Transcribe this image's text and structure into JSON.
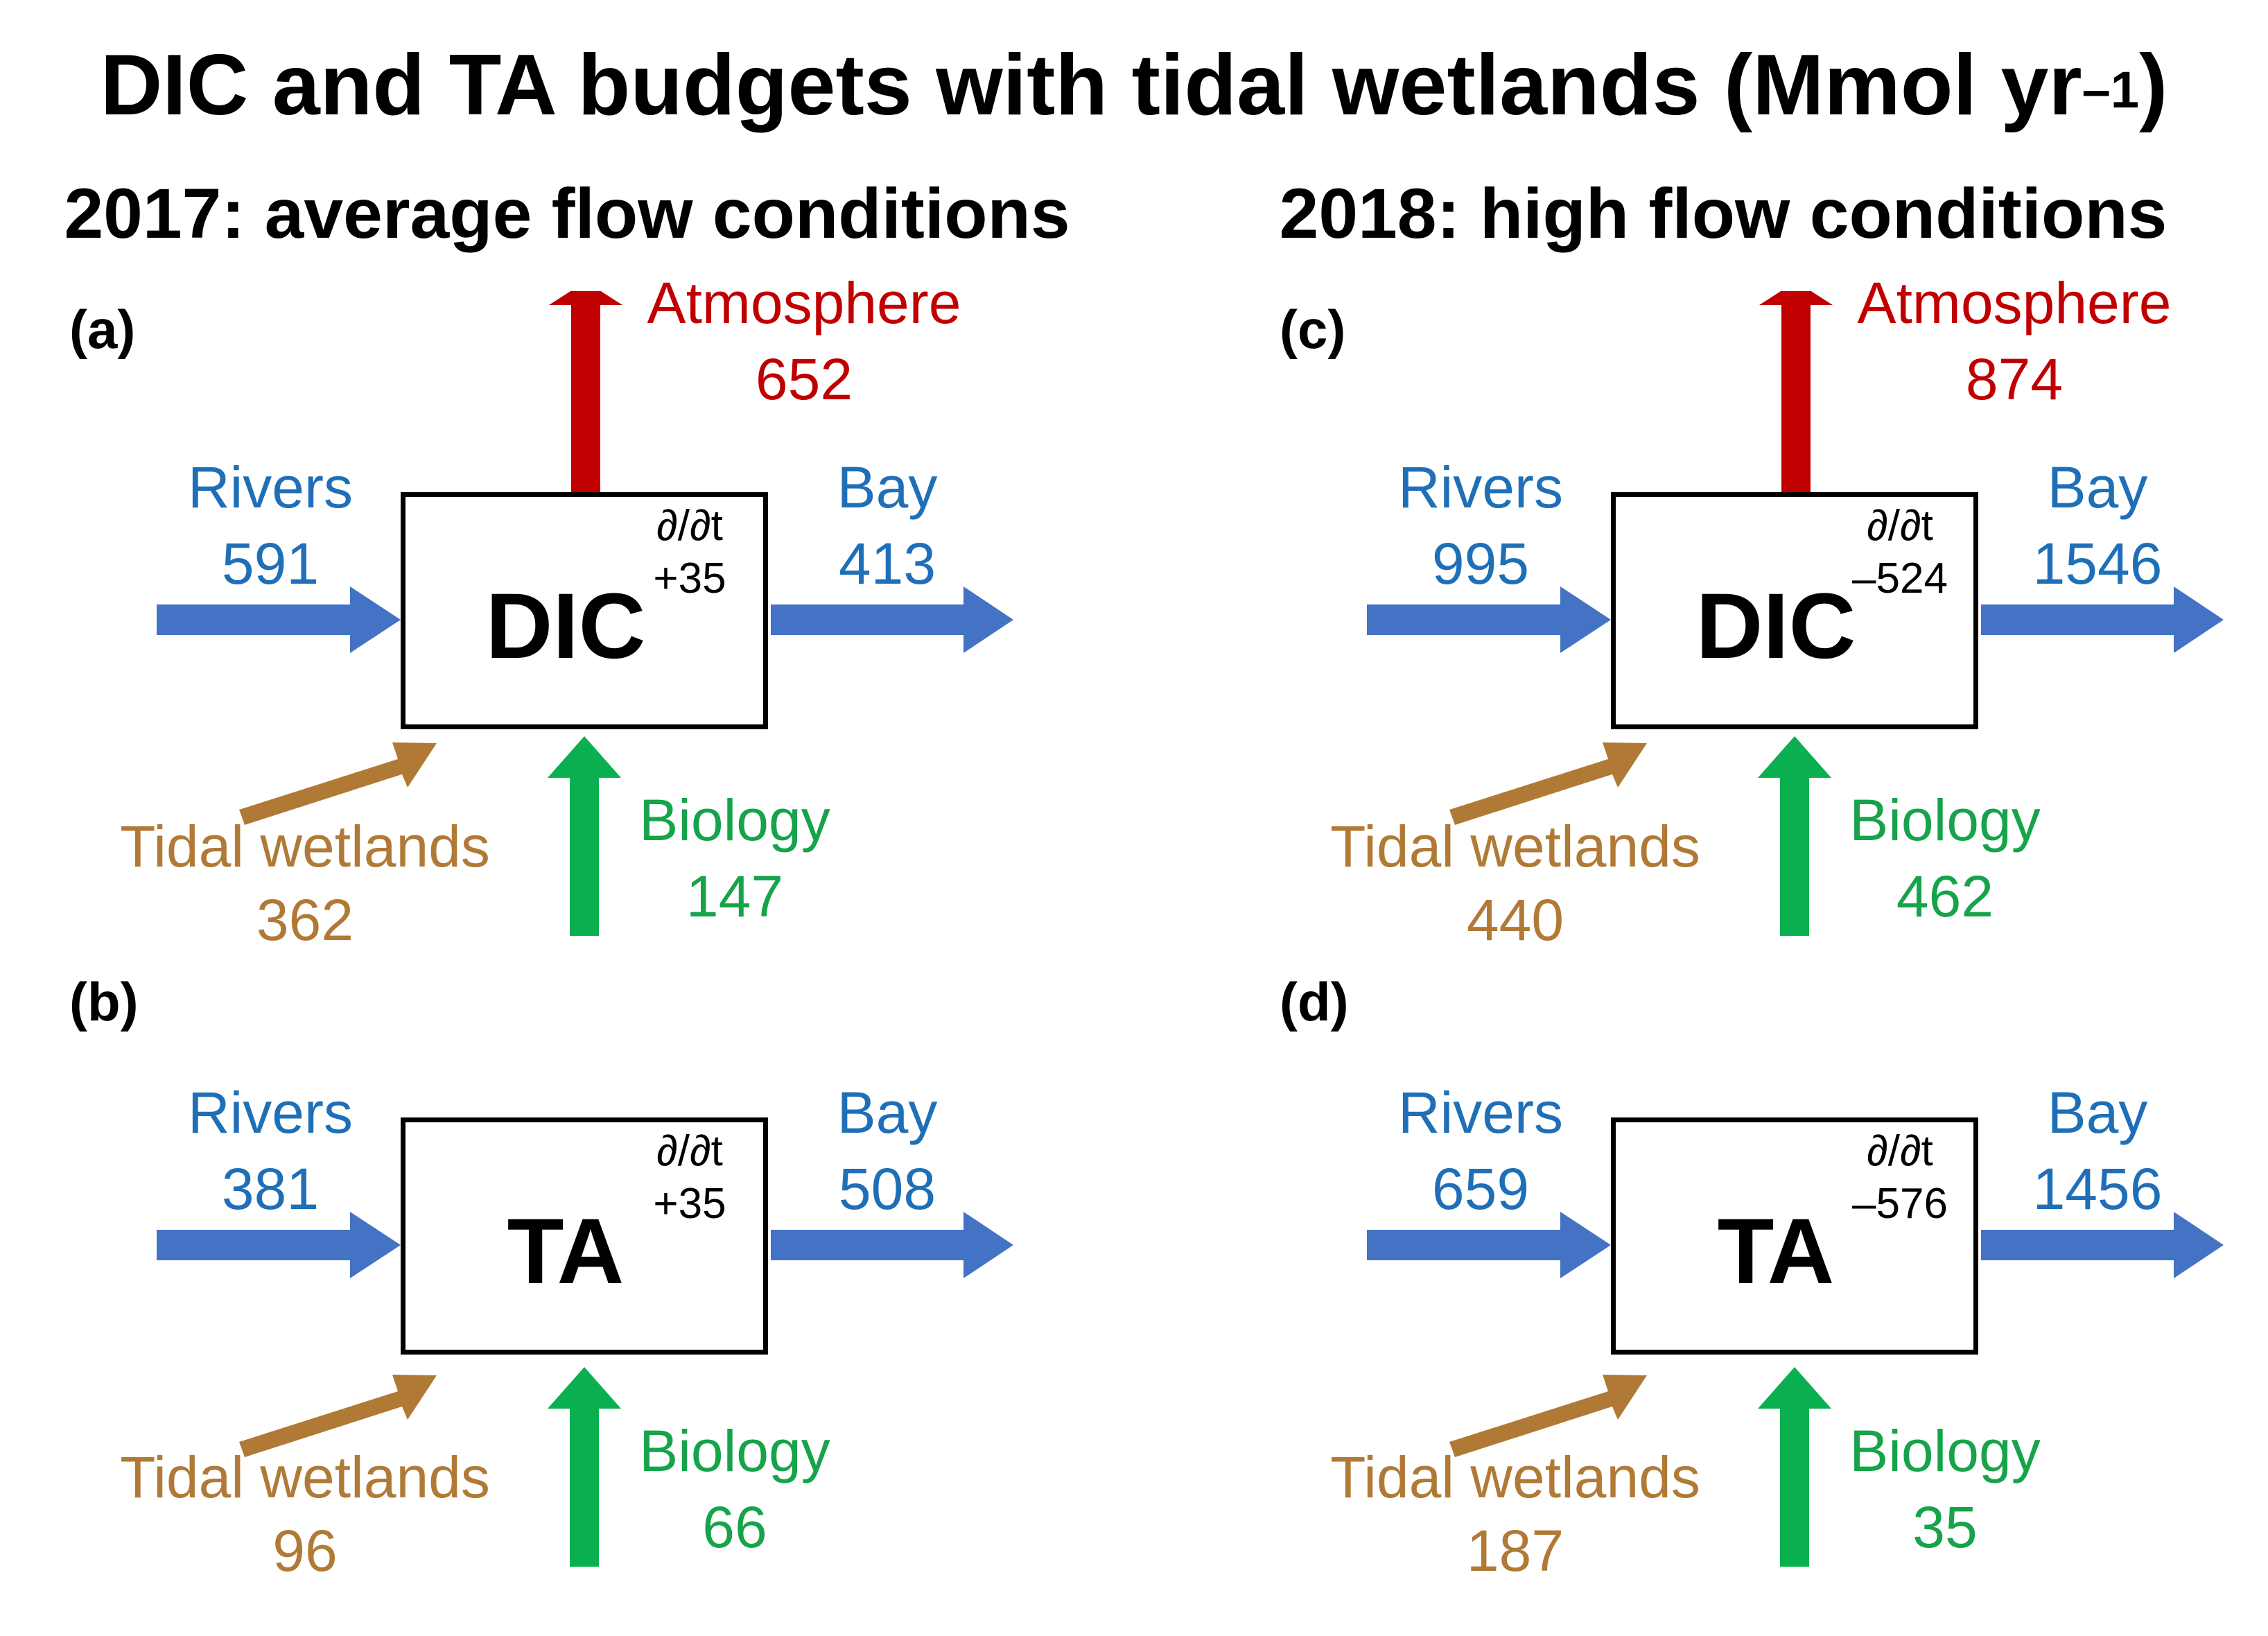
{
  "title": {
    "text": "DIC and TA budgets with tidal wetlands (Mmol yr",
    "superscript": "–1",
    "closing": ")"
  },
  "columns": [
    {
      "subtitle": "2017: average flow conditions"
    },
    {
      "subtitle": "2018: high flow conditions"
    }
  ],
  "colors": {
    "rivers_bay": "#4472c4",
    "rivers_bay_text": "#1f6fb8",
    "atmosphere": "#c00000",
    "biology": "#0ab04f",
    "biology_text": "#16a34a",
    "tidal_wetlands": "#b07a36",
    "box_border": "#000000"
  },
  "panels": [
    {
      "label": "(a)",
      "variable": "DIC",
      "deriv_label": "∂/∂t",
      "deriv_value": "+35",
      "rivers_label": "Rivers",
      "rivers_value": "591",
      "bay_label": "Bay",
      "bay_value": "413",
      "atmosphere_label": "Atmosphere",
      "atmosphere_value": "652",
      "biology_label": "Biology",
      "biology_value": "147",
      "wetlands_label": "Tidal wetlands",
      "wetlands_value": "362",
      "has_atmosphere": true
    },
    {
      "label": "(b)",
      "variable": "TA",
      "deriv_label": "∂/∂t",
      "deriv_value": "+35",
      "rivers_label": "Rivers",
      "rivers_value": "381",
      "bay_label": "Bay",
      "bay_value": "508",
      "biology_label": "Biology",
      "biology_value": "66",
      "wetlands_label": "Tidal wetlands",
      "wetlands_value": "96",
      "has_atmosphere": false
    },
    {
      "label": "(c)",
      "variable": "DIC",
      "deriv_label": "∂/∂t",
      "deriv_value": "–524",
      "rivers_label": "Rivers",
      "rivers_value": "995",
      "bay_label": "Bay",
      "bay_value": "1546",
      "atmosphere_label": "Atmosphere",
      "atmosphere_value": "874",
      "biology_label": "Biology",
      "biology_value": "462",
      "wetlands_label": "Tidal wetlands",
      "wetlands_value": "440",
      "has_atmosphere": true
    },
    {
      "label": "(d)",
      "variable": "TA",
      "deriv_label": "∂/∂t",
      "deriv_value": "–576",
      "rivers_label": "Rivers",
      "rivers_value": "659",
      "bay_label": "Bay",
      "bay_value": "1456",
      "biology_label": "Biology",
      "biology_value": "35",
      "wetlands_label": "Tidal wetlands",
      "wetlands_value": "187",
      "has_atmosphere": false
    }
  ]
}
